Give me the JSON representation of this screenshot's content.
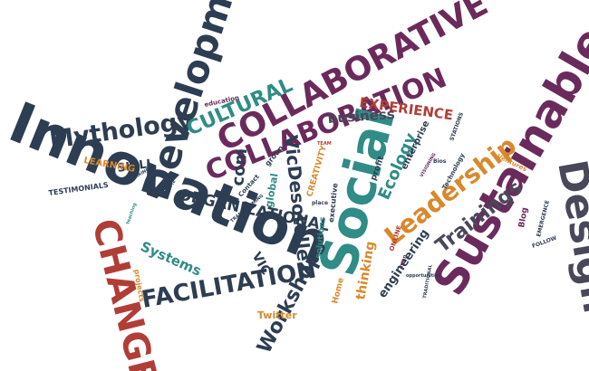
{
  "palette": {
    "navy": "#2d3d52",
    "purple": "#6b2a5c",
    "red": "#b03e36",
    "teal": "#2f8c86",
    "orange": "#d8892c",
    "slate": "#49475a"
  },
  "words": {
    "innovation": "Innovation",
    "change": "CHANGE",
    "development": "Development",
    "mythology": "Mythology",
    "collaborative": "COLLABORATIVE",
    "collaboration": "COLLABORATION",
    "cultural": "CULTURAL",
    "organizational": "ORGANIZATIONAL",
    "facilitation": "FACILITATION",
    "social": "Social",
    "sustainable": "Sustainable",
    "design": "Design",
    "leadership": "Leadership",
    "trainings": "Trainings",
    "workshops": "Workshops",
    "vicdesotelle": "VicDesotelle",
    "experience": "EXPERIENCE",
    "business": "business",
    "ecology": "Ecology",
    "thinking": "thinking",
    "engineering": "engineering",
    "systems": "Systems",
    "skill": "SKILL",
    "learning": "LEARNING",
    "testimonials": "TESTIMONIALS",
    "twitter": "Twitter",
    "global": "global",
    "com": "com",
    "vic": "VIC",
    "creativity": "CREATIVITY",
    "solutions": "solutions",
    "executive": "executive",
    "profit": "profit",
    "enterprise": "enterprise",
    "technology": "Technology",
    "blog": "Blog",
    "emergence": "EMERGENCE",
    "follow": "FOLLOW",
    "ventures": "Ventures",
    "stations": "STATIONS",
    "projects": "projects",
    "education": "education",
    "contact": "Contact",
    "home": "Home",
    "group": "group",
    "online": "ONLINE",
    "team": "TEAM",
    "opportunities": "opportunities",
    "transforming": "TRANSFORMING",
    "resume": "RESUME",
    "hiring": "HIRING",
    "place": "place",
    "teaching": "teaching",
    "visioning": "VISIONING",
    "traditional": "TRADITIONAL",
    "mon": "mon",
    "bios": "Bios"
  }
}
